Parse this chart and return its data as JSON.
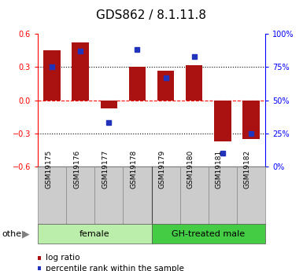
{
  "title": "GDS862 / 8.1.11.8",
  "samples": [
    "GSM19175",
    "GSM19176",
    "GSM19177",
    "GSM19178",
    "GSM19179",
    "GSM19180",
    "GSM19181",
    "GSM19182"
  ],
  "log_ratio": [
    0.45,
    0.52,
    -0.07,
    0.3,
    0.27,
    0.32,
    -0.37,
    -0.35
  ],
  "percentile_rank": [
    75,
    87,
    33,
    88,
    67,
    83,
    10,
    25
  ],
  "bar_color": "#aa1111",
  "dot_color": "#2233bb",
  "ylim": [
    -0.6,
    0.6
  ],
  "yticks_left": [
    -0.6,
    -0.3,
    0.0,
    0.3,
    0.6
  ],
  "yticks_right": [
    0,
    25,
    50,
    75,
    100
  ],
  "hlines_dotted": [
    0.3,
    -0.3
  ],
  "hline_dashed": 0.0,
  "group_female": {
    "label": "female",
    "start": 0,
    "end": 4,
    "color": "#bbeeaa"
  },
  "group_male": {
    "label": "GH-treated male",
    "start": 4,
    "end": 8,
    "color": "#44cc44"
  },
  "other_label": "other",
  "legend_items": [
    {
      "label": "log ratio",
      "color": "#aa1111"
    },
    {
      "label": "percentile rank within the sample",
      "color": "#2233bb"
    }
  ],
  "title_fontsize": 11,
  "tick_fontsize": 7,
  "sample_fontsize": 6.5,
  "group_fontsize": 8,
  "legend_fontsize": 7.5,
  "other_fontsize": 8
}
